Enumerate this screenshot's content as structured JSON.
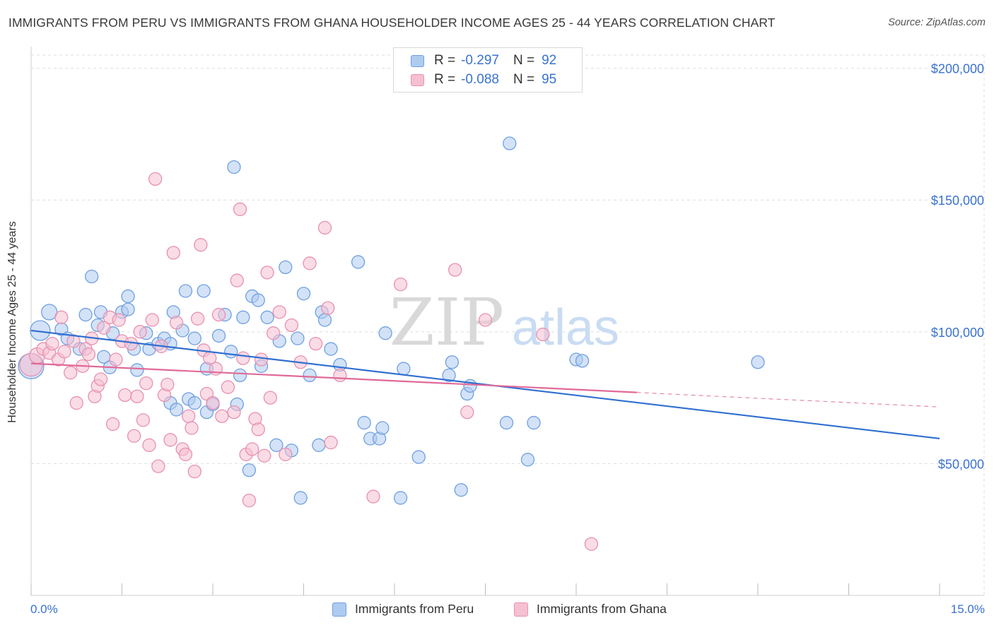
{
  "title": "IMMIGRANTS FROM PERU VS IMMIGRANTS FROM GHANA HOUSEHOLDER INCOME AGES 25 - 44 YEARS CORRELATION CHART",
  "source": "Source: ZipAtlas.com",
  "watermark": {
    "zip": "ZIP",
    "atlas": "atlas"
  },
  "colors": {
    "peru_fill": "#aecbf0",
    "peru_stroke": "#6fa0e0",
    "peru_line": "#2f6fd0",
    "ghana_fill": "#f5c0d2",
    "ghana_stroke": "#e890b0",
    "ghana_line": "#e06a98",
    "axis_text": "#3a72d1",
    "grid": "#dedede"
  },
  "legend": {
    "rows": [
      {
        "r_label": "R =",
        "r_value": "-0.297",
        "n_label": "N =",
        "n_value": "92",
        "series": "peru"
      },
      {
        "r_label": "R =",
        "r_value": "-0.088",
        "n_label": "N =",
        "n_value": "95",
        "series": "ghana"
      }
    ],
    "bottom": [
      {
        "label": "Immigrants from Peru",
        "series": "peru"
      },
      {
        "label": "Immigrants from Ghana",
        "series": "ghana"
      }
    ]
  },
  "x_axis": {
    "min_label": "0.0%",
    "max_label": "15.0%"
  },
  "chart_data": {
    "type": "scatter",
    "xlabel": "",
    "ylabel": "Householder Income Ages 25 - 44 years",
    "xlim": [
      0,
      15
    ],
    "ylim": [
      0,
      205000
    ],
    "yticks": [
      {
        "value": 50000,
        "label": "$50,000"
      },
      {
        "value": 100000,
        "label": "$100,000"
      },
      {
        "value": 150000,
        "label": "$150,000"
      },
      {
        "value": 200000,
        "label": "$200,000"
      }
    ],
    "grid": true,
    "legend_placement": "top-center",
    "series": [
      {
        "name": "Immigrants from Peru",
        "key": "peru",
        "trend": {
          "x0": 0,
          "y0": 100500,
          "x1": 15,
          "y1": 59500,
          "dashed_from": null
        },
        "points": [
          [
            0.0,
            87000,
            18
          ],
          [
            0.15,
            100500,
            14
          ],
          [
            0.3,
            107500,
            11
          ],
          [
            0.5,
            101000,
            9
          ],
          [
            0.6,
            97500,
            9
          ],
          [
            0.8,
            93500,
            9
          ],
          [
            0.9,
            106500,
            9
          ],
          [
            1.0,
            121000,
            9
          ],
          [
            1.1,
            102500,
            9
          ],
          [
            1.15,
            107500,
            9
          ],
          [
            1.2,
            90500,
            9
          ],
          [
            1.3,
            86500,
            9
          ],
          [
            1.35,
            99500,
            9
          ],
          [
            1.5,
            107500,
            9
          ],
          [
            1.6,
            108500,
            9
          ],
          [
            1.6,
            113500,
            9
          ],
          [
            1.7,
            93500,
            9
          ],
          [
            1.75,
            85500,
            9
          ],
          [
            1.9,
            99500,
            9
          ],
          [
            1.95,
            93500,
            9
          ],
          [
            2.1,
            95500,
            9
          ],
          [
            2.2,
            97500,
            9
          ],
          [
            2.3,
            95500,
            9
          ],
          [
            2.3,
            73000,
            9
          ],
          [
            2.35,
            107500,
            9
          ],
          [
            2.4,
            70500,
            9
          ],
          [
            2.5,
            100500,
            9
          ],
          [
            2.55,
            115500,
            9
          ],
          [
            2.6,
            74500,
            9
          ],
          [
            2.7,
            97500,
            9
          ],
          [
            2.7,
            73000,
            9
          ],
          [
            2.85,
            115500,
            9
          ],
          [
            2.9,
            86000,
            9
          ],
          [
            2.9,
            69500,
            9
          ],
          [
            3.0,
            72500,
            9
          ],
          [
            3.1,
            98500,
            9
          ],
          [
            3.2,
            106500,
            9
          ],
          [
            3.3,
            92500,
            9
          ],
          [
            3.4,
            72500,
            9
          ],
          [
            3.35,
            162500,
            9
          ],
          [
            3.45,
            83500,
            9
          ],
          [
            3.5,
            105500,
            9
          ],
          [
            3.6,
            47500,
            9
          ],
          [
            3.65,
            113500,
            9
          ],
          [
            3.75,
            112000,
            9
          ],
          [
            3.8,
            87000,
            9
          ],
          [
            3.9,
            105500,
            9
          ],
          [
            4.05,
            57000,
            9
          ],
          [
            4.1,
            96500,
            9
          ],
          [
            4.2,
            124500,
            9
          ],
          [
            4.3,
            55000,
            9
          ],
          [
            4.4,
            97500,
            9
          ],
          [
            4.45,
            37000,
            9
          ],
          [
            4.5,
            114500,
            9
          ],
          [
            4.6,
            83500,
            9
          ],
          [
            4.75,
            57000,
            9
          ],
          [
            4.8,
            107500,
            9
          ],
          [
            4.85,
            104500,
            9
          ],
          [
            4.95,
            93500,
            9
          ],
          [
            5.1,
            87500,
            9
          ],
          [
            5.4,
            126500,
            9
          ],
          [
            5.5,
            65500,
            9
          ],
          [
            5.6,
            59500,
            9
          ],
          [
            5.75,
            59500,
            9
          ],
          [
            5.8,
            63500,
            9
          ],
          [
            5.85,
            99500,
            9
          ],
          [
            6.1,
            37000,
            9
          ],
          [
            6.15,
            86000,
            9
          ],
          [
            6.4,
            52500,
            9
          ],
          [
            6.9,
            83500,
            9
          ],
          [
            6.95,
            88500,
            9
          ],
          [
            7.1,
            40000,
            9
          ],
          [
            7.2,
            76500,
            9
          ],
          [
            7.25,
            79500,
            9
          ],
          [
            7.85,
            65500,
            9
          ],
          [
            7.9,
            171500,
            9
          ],
          [
            8.2,
            51500,
            9
          ],
          [
            8.3,
            65500,
            9
          ],
          [
            9.0,
            89500,
            9
          ],
          [
            9.1,
            89000,
            9
          ],
          [
            12.0,
            88500,
            9
          ]
        ]
      },
      {
        "name": "Immigrants from Ghana",
        "key": "ghana",
        "trend": {
          "x0": 0,
          "y0": 88000,
          "x1": 15,
          "y1": 71500,
          "dashed_from": 10.0
        },
        "points": [
          [
            0.0,
            87500,
            16
          ],
          [
            0.1,
            91000,
            11
          ],
          [
            0.2,
            93500,
            9
          ],
          [
            0.3,
            92000,
            9
          ],
          [
            0.35,
            95500,
            9
          ],
          [
            0.45,
            89500,
            9
          ],
          [
            0.5,
            105500,
            9
          ],
          [
            0.55,
            92500,
            9
          ],
          [
            0.65,
            84500,
            9
          ],
          [
            0.7,
            96500,
            9
          ],
          [
            0.75,
            73000,
            9
          ],
          [
            0.85,
            87000,
            9
          ],
          [
            0.9,
            93500,
            9
          ],
          [
            0.95,
            91500,
            9
          ],
          [
            1.0,
            97500,
            9
          ],
          [
            1.05,
            75500,
            9
          ],
          [
            1.1,
            79500,
            9
          ],
          [
            1.15,
            82000,
            9
          ],
          [
            1.2,
            101500,
            9
          ],
          [
            1.3,
            105500,
            9
          ],
          [
            1.35,
            65000,
            9
          ],
          [
            1.4,
            89500,
            9
          ],
          [
            1.45,
            104500,
            9
          ],
          [
            1.5,
            96500,
            9
          ],
          [
            1.55,
            76000,
            9
          ],
          [
            1.65,
            95500,
            9
          ],
          [
            1.7,
            60500,
            9
          ],
          [
            1.75,
            75500,
            9
          ],
          [
            1.8,
            100000,
            9
          ],
          [
            1.85,
            66500,
            9
          ],
          [
            1.9,
            80500,
            9
          ],
          [
            1.95,
            57000,
            9
          ],
          [
            2.0,
            104500,
            9
          ],
          [
            2.05,
            158000,
            9
          ],
          [
            2.1,
            49000,
            9
          ],
          [
            2.15,
            94500,
            9
          ],
          [
            2.2,
            76000,
            9
          ],
          [
            2.25,
            80000,
            9
          ],
          [
            2.3,
            59000,
            9
          ],
          [
            2.35,
            130000,
            9
          ],
          [
            2.4,
            103500,
            9
          ],
          [
            2.5,
            55500,
            9
          ],
          [
            2.55,
            53500,
            9
          ],
          [
            2.6,
            68000,
            9
          ],
          [
            2.65,
            63500,
            9
          ],
          [
            2.7,
            47000,
            9
          ],
          [
            2.75,
            105000,
            9
          ],
          [
            2.8,
            133000,
            9
          ],
          [
            2.85,
            93000,
            9
          ],
          [
            2.9,
            76500,
            9
          ],
          [
            2.95,
            90000,
            9
          ],
          [
            3.0,
            73000,
            9
          ],
          [
            3.05,
            86000,
            9
          ],
          [
            3.1,
            106500,
            9
          ],
          [
            3.15,
            68000,
            9
          ],
          [
            3.25,
            79000,
            9
          ],
          [
            3.35,
            69500,
            9
          ],
          [
            3.4,
            119500,
            9
          ],
          [
            3.45,
            146500,
            9
          ],
          [
            3.5,
            90000,
            9
          ],
          [
            3.55,
            53500,
            9
          ],
          [
            3.6,
            36000,
            9
          ],
          [
            3.65,
            55500,
            9
          ],
          [
            3.7,
            67000,
            9
          ],
          [
            3.75,
            63000,
            9
          ],
          [
            3.8,
            89500,
            9
          ],
          [
            3.85,
            53000,
            9
          ],
          [
            3.9,
            122500,
            9
          ],
          [
            3.95,
            75000,
            9
          ],
          [
            4.0,
            99500,
            9
          ],
          [
            4.1,
            107500,
            9
          ],
          [
            4.2,
            53500,
            9
          ],
          [
            4.3,
            102500,
            9
          ],
          [
            4.45,
            88500,
            9
          ],
          [
            4.6,
            126000,
            9
          ],
          [
            4.7,
            95500,
            9
          ],
          [
            4.85,
            139500,
            9
          ],
          [
            4.9,
            109000,
            9
          ],
          [
            4.95,
            58000,
            9
          ],
          [
            5.1,
            83500,
            9
          ],
          [
            5.65,
            37500,
            9
          ],
          [
            6.1,
            118000,
            9
          ],
          [
            7.0,
            123500,
            9
          ],
          [
            7.2,
            69500,
            9
          ],
          [
            7.5,
            104500,
            9
          ],
          [
            8.45,
            99000,
            9
          ],
          [
            9.25,
            19500,
            9
          ]
        ]
      }
    ]
  }
}
